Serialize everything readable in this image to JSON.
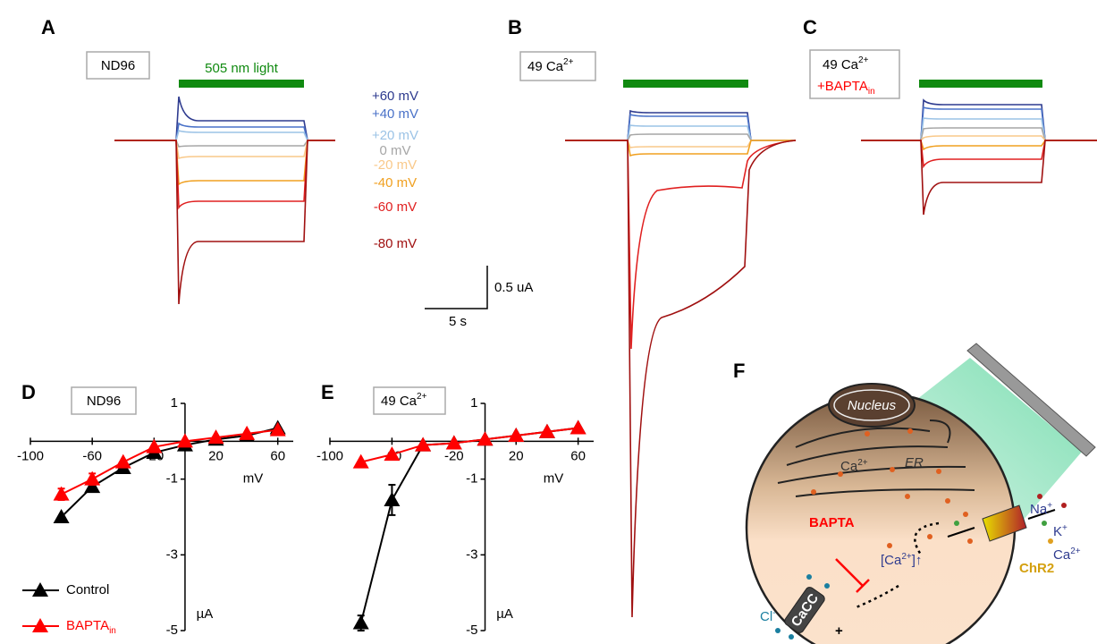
{
  "panels": {
    "A": {
      "letter": "A",
      "condition": "ND96",
      "light": "505 nm light",
      "voltages": [
        {
          "label": "+60 mV",
          "color": "#2e3b8f"
        },
        {
          "label": "+40 mV",
          "color": "#4a72c8"
        },
        {
          "label": "+20 mV",
          "color": "#9cc3e6"
        },
        {
          "label": "0 mV",
          "color": "#a6a6a6"
        },
        {
          "label": "-20 mV",
          "color": "#f9c98a"
        },
        {
          "label": "-40 mV",
          "color": "#f0a020"
        },
        {
          "label": "-60 mV",
          "color": "#e02020"
        },
        {
          "label": "-80 mV",
          "color": "#a01010"
        }
      ],
      "scale_y": "0.5 uA",
      "scale_x": "5 s"
    },
    "B": {
      "letter": "B",
      "condition": {
        "text": "49 Ca",
        "sup": "2+"
      }
    },
    "C": {
      "letter": "C",
      "condition": {
        "text": "49 Ca",
        "sup": "2+"
      },
      "treatment": {
        "text": "+BAPTA",
        "sub": "in"
      }
    },
    "F": {
      "letter": "F",
      "nucleus": "Nucleus",
      "er": "ER",
      "er_ion": {
        "text": "Ca",
        "sup": "2+"
      },
      "blocker": "BAPTA",
      "rise": {
        "pre": "[Ca",
        "sup": "2+",
        "post": "]↑"
      },
      "channel": "ChR2",
      "ions": [
        {
          "text": "Na",
          "sup": "+"
        },
        {
          "text": "K",
          "sup": "+"
        },
        {
          "text": "Ca",
          "sup": "2+"
        }
      ],
      "anion": {
        "text": "Cl",
        "sup": "-"
      },
      "cacc": "CaCC",
      "plus": "+"
    }
  },
  "chart_data": [
    {
      "type": "line",
      "panel": "D",
      "condition": "ND96",
      "x": [
        -80,
        -60,
        -40,
        -20,
        0,
        20,
        40,
        60
      ],
      "series": [
        {
          "name": "Control",
          "color": "#000000",
          "values": [
            -2.0,
            -1.2,
            -0.7,
            -0.3,
            -0.1,
            0.05,
            0.15,
            0.35
          ],
          "errors": [
            null,
            null,
            null,
            null,
            null,
            null,
            null,
            null
          ]
        },
        {
          "name": "BAPTA",
          "name_subscript": "in",
          "color": "#ff0000",
          "values": [
            -1.4,
            -1.0,
            -0.55,
            -0.15,
            0.0,
            0.1,
            0.2,
            0.3
          ],
          "errors": [
            0.15,
            0.15,
            null,
            null,
            null,
            null,
            null,
            null
          ]
        }
      ],
      "xlim": [
        -100,
        70
      ],
      "ylim": [
        -5,
        1
      ],
      "xticks": [
        -100,
        -60,
        -20,
        20,
        60
      ],
      "yticks": [
        1,
        -1,
        -3,
        -5
      ],
      "x_label": "mV",
      "y_label": "µA",
      "legend": true
    },
    {
      "type": "line",
      "panel": "E",
      "condition": {
        "text": "49 Ca",
        "sup": "2+"
      },
      "x": [
        -80,
        -60,
        -40,
        -20,
        0,
        20,
        40,
        60
      ],
      "series": [
        {
          "name": "Control",
          "color": "#000000",
          "values": [
            -4.8,
            -1.55,
            -0.1,
            -0.05,
            0.05,
            0.15,
            0.25,
            0.35
          ],
          "errors": [
            0.2,
            0.4,
            null,
            null,
            null,
            null,
            null,
            null
          ]
        },
        {
          "name": "BAPTA",
          "name_subscript": "in",
          "color": "#ff0000",
          "values": [
            -0.55,
            -0.35,
            -0.1,
            -0.05,
            0.05,
            0.15,
            0.25,
            0.35
          ],
          "errors": [
            null,
            null,
            null,
            null,
            null,
            null,
            null,
            null
          ]
        }
      ],
      "xlim": [
        -100,
        70
      ],
      "ylim": [
        -5,
        1
      ],
      "xticks": [
        -100,
        -60,
        -20,
        20,
        60
      ],
      "yticks": [
        1,
        -1,
        -3,
        -5
      ],
      "x_label": "mV",
      "y_label": "µA",
      "legend": false
    }
  ]
}
